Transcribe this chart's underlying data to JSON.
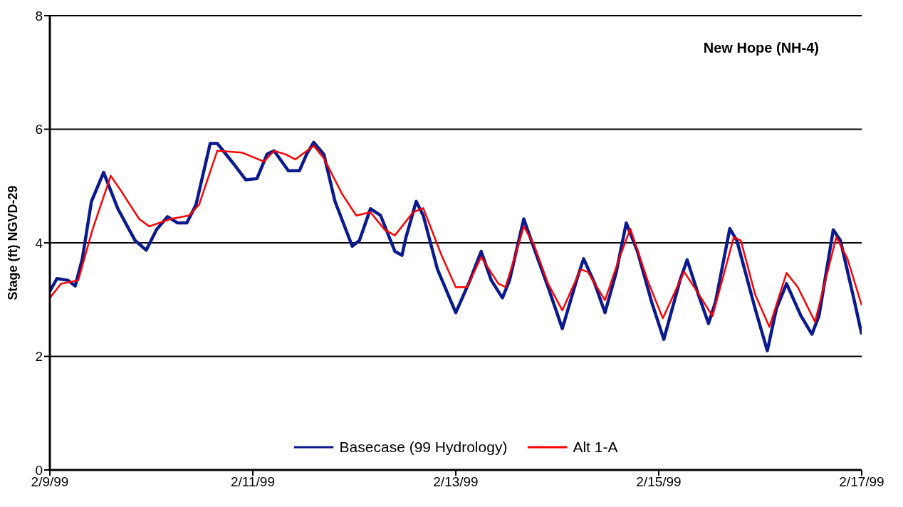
{
  "chart_data": {
    "type": "line",
    "ylabel": "Stage (ft) NGVD-29",
    "annotations": [
      "New Hope (NH-4)"
    ],
    "xlim": [
      "1999-02-09",
      "1999-02-17"
    ],
    "xticks": [
      {
        "value": "1999-02-09",
        "label": "2/9/99"
      },
      {
        "value": "1999-02-11",
        "label": "2/11/99"
      },
      {
        "value": "1999-02-13",
        "label": "2/13/99"
      },
      {
        "value": "1999-02-15",
        "label": "2/15/99"
      },
      {
        "value": "1999-02-17",
        "label": "2/17/99"
      }
    ],
    "ylim": [
      0,
      8
    ],
    "yticks": [
      0,
      2,
      4,
      6,
      8
    ],
    "grid": "y",
    "legend": "bottom",
    "marker": "none",
    "line_style": "solid",
    "series": [
      {
        "name": "Basecase (99 Hydrology)",
        "color": "#0b1a8c",
        "x": [
          "1999-02-09T00:00",
          "1999-02-09T01:41",
          "1999-02-09T04:19",
          "1999-02-09T06:00",
          "1999-02-09T07:41",
          "1999-02-09T09:50",
          "1999-02-09T12:43",
          "1999-02-09T16:05",
          "1999-02-09T20:10",
          "1999-02-09T22:48",
          "1999-02-10T01:12",
          "1999-02-10T03:50",
          "1999-02-10T06:14",
          "1999-02-10T08:24",
          "1999-02-10T10:34",
          "1999-02-10T13:55",
          "1999-02-10T15:36",
          "1999-02-10T19:41",
          "1999-02-10T22:19",
          "1999-02-11T00:58",
          "1999-02-11T03:22",
          "1999-02-11T05:02",
          "1999-02-11T08:24",
          "1999-02-11T11:02",
          "1999-02-11T12:43",
          "1999-02-11T14:24",
          "1999-02-11T16:48",
          "1999-02-11T19:26",
          "1999-02-11T23:31",
          "1999-02-12T01:12",
          "1999-02-12T03:50",
          "1999-02-12T06:14",
          "1999-02-12T09:36",
          "1999-02-12T11:17",
          "1999-02-12T12:14",
          "1999-02-12T14:38",
          "1999-02-12T16:19",
          "1999-02-12T19:41",
          "1999-02-13T00:00",
          "1999-02-13T03:22",
          "1999-02-13T06:00",
          "1999-02-13T08:24",
          "1999-02-13T11:02",
          "1999-02-13T12:43",
          "1999-02-13T16:05",
          "1999-02-13T18:29",
          "1999-02-13T21:50",
          "1999-02-14T01:12",
          "1999-02-14T04:34",
          "1999-02-14T06:14",
          "1999-02-14T08:53",
          "1999-02-14T11:17",
          "1999-02-14T13:55",
          "1999-02-14T16:19",
          "1999-02-14T18:58",
          "1999-02-14T22:19",
          "1999-02-15T01:12",
          "1999-02-15T05:02",
          "1999-02-15T06:43",
          "1999-02-15T09:22",
          "1999-02-15T11:46",
          "1999-02-15T13:26",
          "1999-02-15T16:48",
          "1999-02-15T18:29",
          "1999-02-15T22:48",
          "1999-02-16T01:41",
          "1999-02-16T03:50",
          "1999-02-16T06:14",
          "1999-02-16T09:36",
          "1999-02-16T12:14",
          "1999-02-16T13:55",
          "1999-02-16T17:17",
          "1999-02-16T18:58",
          "1999-02-16T22:19",
          "1999-02-17T00:00"
        ],
        "values": [
          3.15,
          3.37,
          3.34,
          3.24,
          3.72,
          4.73,
          5.24,
          4.6,
          4.04,
          3.87,
          4.23,
          4.46,
          4.35,
          4.35,
          4.67,
          5.75,
          5.75,
          5.37,
          5.11,
          5.13,
          5.56,
          5.62,
          5.27,
          5.27,
          5.56,
          5.77,
          5.56,
          4.73,
          3.94,
          4.04,
          4.6,
          4.48,
          3.85,
          3.78,
          4.1,
          4.73,
          4.48,
          3.53,
          2.77,
          3.34,
          3.85,
          3.34,
          3.03,
          3.34,
          4.42,
          3.91,
          3.22,
          2.49,
          3.34,
          3.72,
          3.28,
          2.77,
          3.47,
          4.35,
          3.85,
          2.96,
          2.3,
          3.34,
          3.7,
          3.09,
          2.58,
          2.96,
          4.25,
          4.04,
          2.84,
          2.1,
          2.84,
          3.28,
          2.72,
          2.39,
          2.72,
          4.23,
          4.04,
          2.96,
          2.39
        ]
      },
      {
        "name": "Alt 1-A",
        "color": "#ff0000",
        "x": [
          "1999-02-09T00:00",
          "1999-02-09T02:38",
          "1999-02-09T06:43",
          "1999-02-09T10:05",
          "1999-02-09T14:24",
          "1999-02-09T16:48",
          "1999-02-09T21:07",
          "1999-02-09T23:31",
          "1999-02-10T04:34",
          "1999-02-10T08:53",
          "1999-02-10T11:17",
          "1999-02-10T15:36",
          "1999-02-10T21:22",
          "1999-02-11T02:38",
          "1999-02-11T05:02",
          "1999-02-11T07:41",
          "1999-02-11T10:05",
          "1999-02-11T14:24",
          "1999-02-11T16:48",
          "1999-02-11T21:07",
          "1999-02-12T00:29",
          "1999-02-12T03:50",
          "1999-02-12T07:12",
          "1999-02-12T09:36",
          "1999-02-12T13:55",
          "1999-02-12T16:19",
          "1999-02-12T20:38",
          "1999-02-13T00:00",
          "1999-02-13T02:38",
          "1999-02-13T06:00",
          "1999-02-13T10:05",
          "1999-02-13T11:46",
          "1999-02-13T14:24",
          "1999-02-13T16:05",
          "1999-02-13T18:29",
          "1999-02-13T21:50",
          "1999-02-14T01:12",
          "1999-02-14T05:31",
          "1999-02-14T07:12",
          "1999-02-14T11:17",
          "1999-02-14T14:38",
          "1999-02-14T17:17",
          "1999-02-14T21:22",
          "1999-02-15T00:58",
          "1999-02-15T06:00",
          "1999-02-15T08:24",
          "1999-02-15T12:43",
          "1999-02-15T17:46",
          "1999-02-15T19:26",
          "1999-02-15T22:48",
          "1999-02-16T02:10",
          "1999-02-16T06:14",
          "1999-02-16T08:53",
          "1999-02-16T12:58",
          "1999-02-16T18:00",
          "1999-02-16T20:38",
          "1999-02-17T00:00"
        ],
        "values": [
          3.03,
          3.28,
          3.34,
          4.23,
          5.18,
          4.92,
          4.42,
          4.29,
          4.42,
          4.48,
          4.67,
          5.62,
          5.59,
          5.43,
          5.62,
          5.56,
          5.47,
          5.71,
          5.49,
          4.86,
          4.48,
          4.54,
          4.23,
          4.13,
          4.54,
          4.61,
          3.78,
          3.22,
          3.22,
          3.75,
          3.28,
          3.22,
          3.85,
          4.29,
          3.97,
          3.28,
          2.81,
          3.53,
          3.49,
          2.99,
          3.72,
          4.25,
          3.34,
          2.67,
          3.49,
          3.22,
          2.71,
          4.1,
          4.04,
          3.09,
          2.52,
          3.47,
          3.22,
          2.61,
          4.1,
          3.72,
          2.9
        ]
      }
    ]
  }
}
